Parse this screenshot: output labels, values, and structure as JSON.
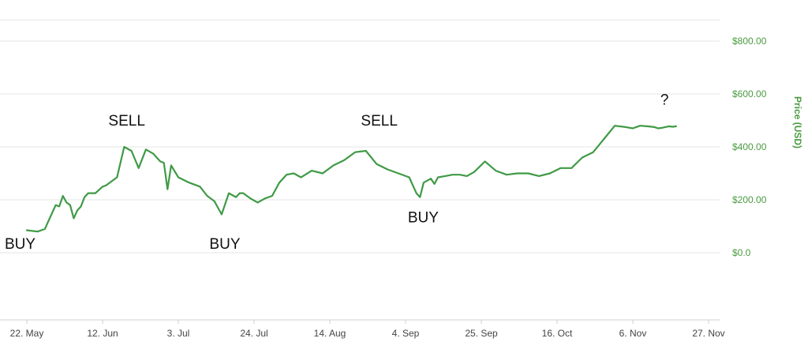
{
  "chart_data": {
    "type": "line",
    "ylabel": "Price (USD)",
    "y_ticks": [
      "$0.0",
      "$200.00",
      "$400.00",
      "$600.00",
      "$800.00"
    ],
    "x_ticks": [
      "22. May",
      "12. Jun",
      "3. Jul",
      "24. Jul",
      "14. Aug",
      "4. Sep",
      "25. Sep",
      "16. Oct",
      "6. Nov",
      "27. Nov"
    ],
    "ylim": [
      -250,
      850
    ],
    "xlim": [
      -3,
      182
    ],
    "grid": "horizontal",
    "legend": "none",
    "line_color": "#3f9a45",
    "series": [
      {
        "x_unit": "days since 19 May (x axis ticks every 21 days from 22. May)",
        "x": [
          0,
          3,
          5,
          6,
          8,
          9,
          10,
          11,
          12,
          13,
          14,
          15,
          16,
          17,
          18,
          19,
          21,
          22,
          23,
          25,
          27,
          29,
          31,
          33,
          35,
          37,
          38,
          39,
          40,
          42,
          45,
          48,
          50,
          52,
          53,
          54,
          56,
          58,
          59,
          60,
          62,
          64,
          66,
          68,
          70,
          72,
          74,
          76,
          79,
          82,
          85,
          88,
          91,
          94,
          97,
          100,
          103,
          106,
          108,
          109,
          110,
          112,
          113,
          114,
          116,
          118,
          120,
          122,
          124,
          127,
          130,
          133,
          136,
          139,
          142,
          145,
          148,
          151,
          154,
          157,
          160,
          163,
          166,
          168,
          170,
          172,
          174,
          175,
          176,
          177,
          178,
          179,
          180
        ],
        "y": [
          85,
          80,
          90,
          120,
          180,
          175,
          215,
          190,
          180,
          130,
          160,
          175,
          210,
          225,
          225,
          225,
          250,
          255,
          265,
          285,
          400,
          385,
          320,
          390,
          375,
          345,
          340,
          240,
          330,
          285,
          265,
          250,
          215,
          195,
          170,
          145,
          225,
          210,
          225,
          225,
          205,
          190,
          205,
          215,
          265,
          295,
          300,
          285,
          310,
          300,
          330,
          350,
          380,
          385,
          335,
          315,
          300,
          285,
          225,
          210,
          265,
          280,
          260,
          285,
          290,
          295,
          295,
          290,
          305,
          345,
          310,
          295,
          300,
          300,
          290,
          300,
          320,
          320,
          360,
          380,
          430,
          480,
          475,
          470,
          480,
          478,
          475,
          470,
          472,
          475,
          478,
          476,
          478
        ]
      }
    ],
    "annotations": [
      {
        "text": "BUY",
        "x": 0,
        "y": 15
      },
      {
        "text": "SELL",
        "x": 27,
        "y": 480
      },
      {
        "text": "BUY",
        "x": 55,
        "y": 15
      },
      {
        "text": "SELL",
        "x": 97,
        "y": 480
      },
      {
        "text": "BUY",
        "x": 110,
        "y": 115
      },
      {
        "text": "?",
        "x": 180,
        "y": 560
      }
    ]
  }
}
